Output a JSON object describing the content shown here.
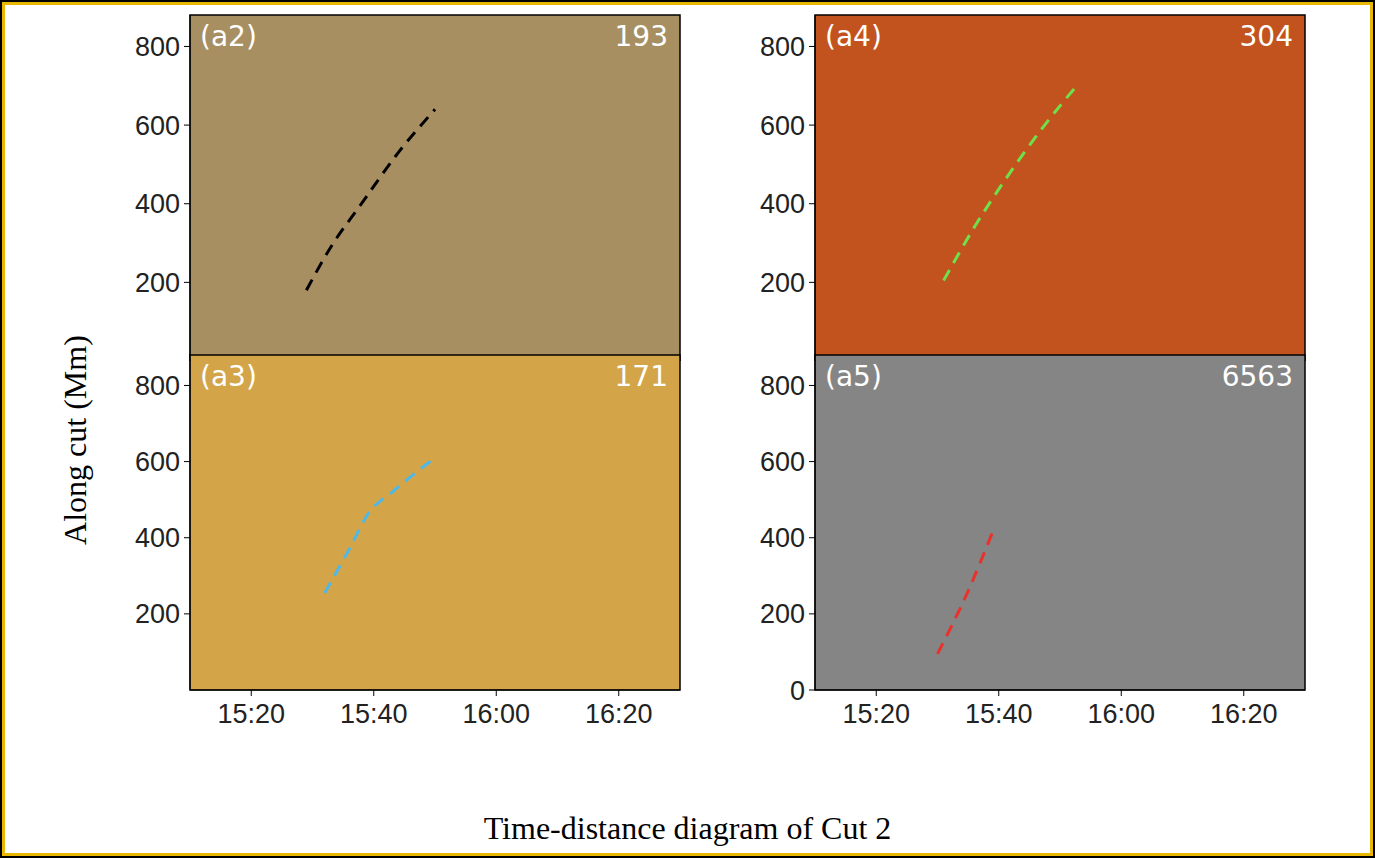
{
  "ylabel": "Along cut (Mm)",
  "caption": "Time-distance diagram of Cut 2",
  "chart_data": [
    {
      "type": "line",
      "title": "(a2)",
      "annotation": "193",
      "x": [
        929,
        933,
        938,
        944,
        950
      ],
      "values": [
        180,
        290,
        400,
        530,
        640
      ],
      "color": "#000000",
      "line_style": "dashed",
      "xlim": [
        910,
        990
      ],
      "xticks": [
        {
          "value": 920,
          "label": "15:20"
        },
        {
          "value": 940,
          "label": "15:40"
        },
        {
          "value": 960,
          "label": "16:00"
        },
        {
          "value": 980,
          "label": "16:20"
        }
      ],
      "ylim": [
        0,
        880
      ],
      "yticks": [
        200,
        400,
        600,
        800
      ],
      "tick_labels": "y"
    },
    {
      "type": "line",
      "title": "(a3)",
      "annotation": "171",
      "x": [
        932,
        936,
        939,
        943,
        946,
        950
      ],
      "values": [
        255,
        370,
        461,
        520,
        560,
        610
      ],
      "color": "#4fb8e8",
      "line_style": "dashed",
      "xlim": [
        910,
        990
      ],
      "xticks": [
        {
          "value": 920,
          "label": "15:20"
        },
        {
          "value": 940,
          "label": "15:40"
        },
        {
          "value": 960,
          "label": "16:00"
        },
        {
          "value": 980,
          "label": "16:20"
        }
      ],
      "ylim": [
        0,
        880
      ],
      "yticks": [
        200,
        400,
        600,
        800
      ]
    },
    {
      "type": "line",
      "title": "(a4)",
      "annotation": "304",
      "x": [
        931,
        936,
        941,
        947,
        953
      ],
      "values": [
        205,
        340,
        460,
        590,
        705
      ],
      "color": "#6fe04a",
      "line_style": "dashed",
      "xlim": [
        910,
        990
      ],
      "xticks": [
        {
          "value": 920,
          "label": "15:20"
        },
        {
          "value": 940,
          "label": "15:40"
        },
        {
          "value": 960,
          "label": "16:00"
        },
        {
          "value": 980,
          "label": "16:20"
        }
      ],
      "ylim": [
        0,
        880
      ],
      "yticks": [
        200,
        400,
        600,
        800
      ],
      "tick_labels": "y"
    },
    {
      "type": "line",
      "title": "(a5)",
      "annotation": "6563",
      "x": [
        930,
        935,
        939
      ],
      "values": [
        95,
        260,
        415
      ],
      "color": "#e8322a",
      "line_style": "dashed",
      "xlim": [
        910,
        990
      ],
      "xticks": [
        {
          "value": 920,
          "label": "15:20"
        },
        {
          "value": 940,
          "label": "15:40"
        },
        {
          "value": 960,
          "label": "16:00"
        },
        {
          "value": 980,
          "label": "16:20"
        }
      ],
      "ylim": [
        0,
        880
      ],
      "yticks": [
        0,
        200,
        400,
        600,
        800
      ]
    }
  ]
}
